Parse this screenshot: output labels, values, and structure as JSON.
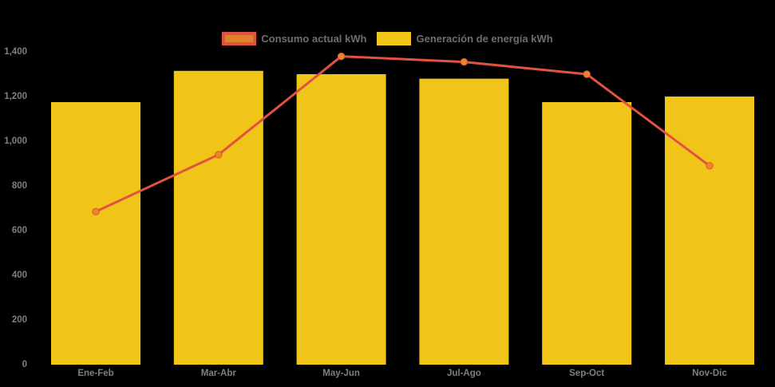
{
  "background_color": "#000000",
  "legend": {
    "items": [
      {
        "label": "Consumo actual kWh",
        "series_type": "line",
        "swatch_outer": "#E15241",
        "swatch_inner": "#E0812E"
      },
      {
        "label": "Generación de energía kWh",
        "series_type": "column",
        "swatch": "#F0C419"
      }
    ]
  },
  "chart_data": {
    "type": "combo",
    "title": "",
    "xlabel": "",
    "ylabel": "",
    "categories": [
      "Ene-Feb",
      "Mar-Abr",
      "May-Jun",
      "Jul-Ago",
      "Sep-Oct",
      "Nov-Dic"
    ],
    "series": [
      {
        "name": "Generación de energía kWh",
        "type": "bar",
        "color": "#F0C419",
        "values": [
          1175,
          1315,
          1300,
          1280,
          1175,
          1200
        ]
      },
      {
        "name": "Consumo actual kWh",
        "type": "line",
        "color": "#E15241",
        "marker_color": "#E8872E",
        "values": [
          685,
          940,
          1380,
          1355,
          1300,
          890
        ]
      }
    ],
    "ylim": [
      0,
      1400
    ],
    "ytick_step": 200,
    "ytick_labels": [
      "0",
      "200",
      "400",
      "600",
      "800",
      "1,000",
      "1,200",
      "1,400"
    ],
    "axis_text_color": "#7F7F7F",
    "grid": false,
    "legend_position": "top-center"
  }
}
